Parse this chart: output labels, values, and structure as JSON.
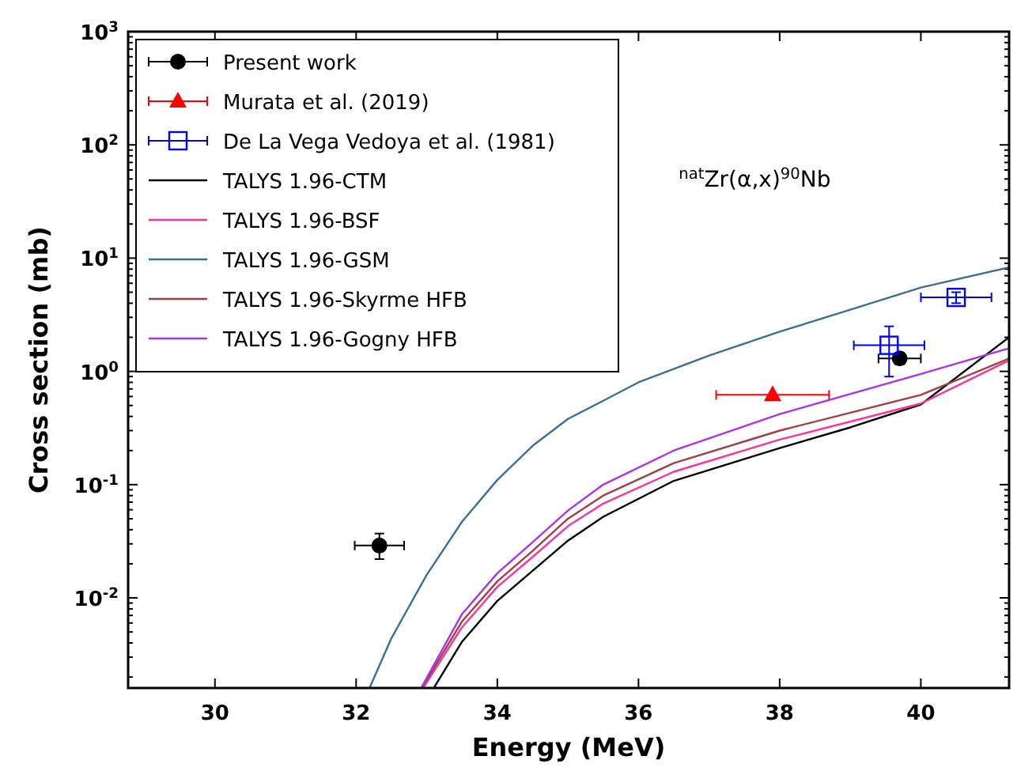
{
  "chart_data": {
    "type": "line",
    "xlabel": "Energy (MeV)",
    "ylabel": "Cross section (mb)",
    "annotations": [
      "$^{nat}$Zr(α,x)$^{90}$Nb"
    ],
    "log": "y",
    "legend": "top left",
    "grid": false,
    "xlim": [
      28.77,
      41.25
    ],
    "xticks": [
      30,
      32,
      34,
      36,
      38,
      40
    ],
    "ylim": [
      0.0016,
      1000
    ],
    "yticks": [
      {
        "value": 0.002,
        "label": null
      },
      {
        "value": 0.003,
        "label": null
      },
      {
        "value": 0.004,
        "label": null
      },
      {
        "value": 0.005,
        "label": null
      },
      {
        "value": 0.006,
        "label": null
      },
      {
        "value": 0.007,
        "label": null
      },
      {
        "value": 0.008,
        "label": null
      },
      {
        "value": 0.009,
        "label": null
      },
      {
        "value": 0.01,
        "label": "10$^{-2}$"
      },
      {
        "value": 0.02,
        "label": null
      },
      {
        "value": 0.03,
        "label": null
      },
      {
        "value": 0.04,
        "label": null
      },
      {
        "value": 0.05,
        "label": null
      },
      {
        "value": 0.06,
        "label": null
      },
      {
        "value": 0.07,
        "label": null
      },
      {
        "value": 0.08,
        "label": null
      },
      {
        "value": 0.09,
        "label": null
      },
      {
        "value": 0.1,
        "label": "10$^{-1}$"
      },
      {
        "value": 0.2,
        "label": null
      },
      {
        "value": 0.3,
        "label": null
      },
      {
        "value": 0.4,
        "label": null
      },
      {
        "value": 0.5,
        "label": null
      },
      {
        "value": 0.6,
        "label": null
      },
      {
        "value": 0.7,
        "label": null
      },
      {
        "value": 0.8,
        "label": null
      },
      {
        "value": 0.9,
        "label": null
      },
      {
        "value": 1,
        "label": "10$^{0}$"
      },
      {
        "value": 2,
        "label": null
      },
      {
        "value": 3,
        "label": null
      },
      {
        "value": 4,
        "label": null
      },
      {
        "value": 5,
        "label": null
      },
      {
        "value": 6,
        "label": null
      },
      {
        "value": 7,
        "label": null
      },
      {
        "value": 8,
        "label": null
      },
      {
        "value": 9,
        "label": null
      },
      {
        "value": 10,
        "label": "10$^{1}$"
      },
      {
        "value": 20,
        "label": null
      },
      {
        "value": 30,
        "label": null
      },
      {
        "value": 40,
        "label": null
      },
      {
        "value": 50,
        "label": null
      },
      {
        "value": 60,
        "label": null
      },
      {
        "value": 70,
        "label": null
      },
      {
        "value": 80,
        "label": null
      },
      {
        "value": 90,
        "label": null
      },
      {
        "value": 100,
        "label": "10$^{2}$"
      },
      {
        "value": 200,
        "label": null
      },
      {
        "value": 300,
        "label": null
      },
      {
        "value": 400,
        "label": null
      },
      {
        "value": 500,
        "label": null
      },
      {
        "value": 600,
        "label": null
      },
      {
        "value": 700,
        "label": null
      },
      {
        "value": 800,
        "label": null
      },
      {
        "value": 900,
        "label": null
      },
      {
        "value": 1000,
        "label": "10$^{3}$"
      }
    ],
    "series": [
      {
        "name": "Present work",
        "type": "scatter",
        "marker": "circle",
        "color": "#000000",
        "x": [
          32.33,
          39.7
        ],
        "values": [
          0.029,
          1.3
        ],
        "errors": [
          [
            0.022,
            0.037
          ],
          [
            1.15,
            1.45
          ]
        ],
        "xerrors": [
          0.35,
          0.3
        ]
      },
      {
        "name": "Murata et al. (2019)",
        "type": "scatter",
        "marker": "triangle",
        "color": "#ff0000",
        "x": [
          37.9
        ],
        "values": [
          0.62
        ],
        "errors": [
          null
        ],
        "xerrors": [
          0.8
        ]
      },
      {
        "name": "De La Vega Vedoya et al. (1981)",
        "type": "scatter",
        "marker": "square",
        "color": "#0000ff",
        "x": [
          39.55,
          40.5
        ],
        "values": [
          1.7,
          4.5
        ],
        "errors": [
          [
            0.9,
            2.5
          ],
          [
            4.0,
            5.0
          ]
        ],
        "xerrors": [
          0.5,
          0.5
        ]
      },
      {
        "name": "TALYS 1.96-CTM",
        "color": "#000000",
        "x": [
          33.1,
          33.5,
          34,
          35,
          35.5,
          36.5,
          38,
          39,
          40,
          41.25
        ],
        "values": [
          0.0016,
          0.0041,
          0.0094,
          0.032,
          0.052,
          0.108,
          0.21,
          0.32,
          0.51,
          2.0
        ]
      },
      {
        "name": "TALYS 1.96-BSF",
        "color": "#ff3399",
        "x": [
          32.95,
          33.5,
          34,
          34.5,
          35,
          35.5,
          36.5,
          38,
          40,
          41.25
        ],
        "values": [
          0.0016,
          0.0055,
          0.0125,
          0.023,
          0.043,
          0.068,
          0.13,
          0.25,
          0.52,
          1.25
        ]
      },
      {
        "name": "TALYS 1.96-GSM",
        "color": "#3a6f96",
        "x": [
          32.19,
          32.5,
          33,
          33.5,
          34,
          34.5,
          35,
          35.5,
          36,
          37,
          38,
          39,
          40,
          41.25
        ],
        "values": [
          0.0016,
          0.0044,
          0.016,
          0.047,
          0.11,
          0.22,
          0.38,
          0.55,
          0.8,
          1.38,
          2.24,
          3.5,
          5.5,
          8.3
        ]
      },
      {
        "name": "TALYS 1.96-Skyrme HFB",
        "color": "#a04040",
        "x": [
          32.93,
          33.5,
          34,
          34.5,
          35,
          35.5,
          36.5,
          38,
          40,
          41.25
        ],
        "values": [
          0.0016,
          0.0062,
          0.014,
          0.026,
          0.05,
          0.08,
          0.155,
          0.3,
          0.62,
          1.3
        ]
      },
      {
        "name": "TALYS 1.96-Gogny HFB",
        "color": "#aa33ee",
        "x": [
          32.92,
          33.5,
          34,
          34.5,
          35,
          35.5,
          36.5,
          38,
          40,
          41.25
        ],
        "values": [
          0.0016,
          0.0072,
          0.0165,
          0.031,
          0.059,
          0.1,
          0.2,
          0.42,
          0.95,
          1.6
        ]
      }
    ]
  }
}
